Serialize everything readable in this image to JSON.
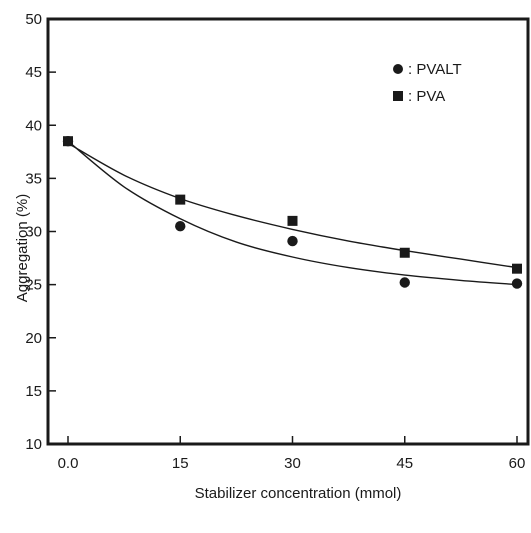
{
  "chart_data": {
    "type": "scatter",
    "xlabel": "Stabilizer concentration (mmol)",
    "ylabel": "Aggregation (%)",
    "xlim": [
      0,
      60
    ],
    "ylim": [
      10,
      50
    ],
    "xticks": [
      0,
      15,
      30,
      45,
      60
    ],
    "xtick_labels": [
      "0.0",
      "15",
      "30",
      "45",
      "60"
    ],
    "yticks": [
      10,
      15,
      20,
      25,
      30,
      35,
      40,
      45,
      50
    ],
    "grid": false,
    "legend_position": "top-right",
    "series": [
      {
        "name": ": PVALT",
        "marker": "circle",
        "color": "#1a1a1a",
        "x": [
          0,
          15,
          30,
          45,
          60
        ],
        "y": [
          38.5,
          30.5,
          29.1,
          25.2,
          25.1
        ],
        "fit_curve": [
          [
            0,
            38.5
          ],
          [
            7.5,
            34.2
          ],
          [
            15,
            31.2
          ],
          [
            22.5,
            29.0
          ],
          [
            30,
            27.6
          ],
          [
            37.5,
            26.6
          ],
          [
            45,
            25.9
          ],
          [
            52.5,
            25.4
          ],
          [
            60,
            25.0
          ]
        ]
      },
      {
        "name": ": PVA",
        "marker": "square",
        "color": "#1a1a1a",
        "x": [
          0,
          15,
          30,
          45,
          60
        ],
        "y": [
          38.5,
          33.0,
          31.0,
          28.0,
          26.5
        ],
        "fit_curve": [
          [
            0,
            38.3
          ],
          [
            7.5,
            35.3
          ],
          [
            15,
            33.1
          ],
          [
            22.5,
            31.5
          ],
          [
            30,
            30.2
          ],
          [
            37.5,
            29.1
          ],
          [
            45,
            28.2
          ],
          [
            52.5,
            27.4
          ],
          [
            60,
            26.6
          ]
        ]
      }
    ]
  }
}
